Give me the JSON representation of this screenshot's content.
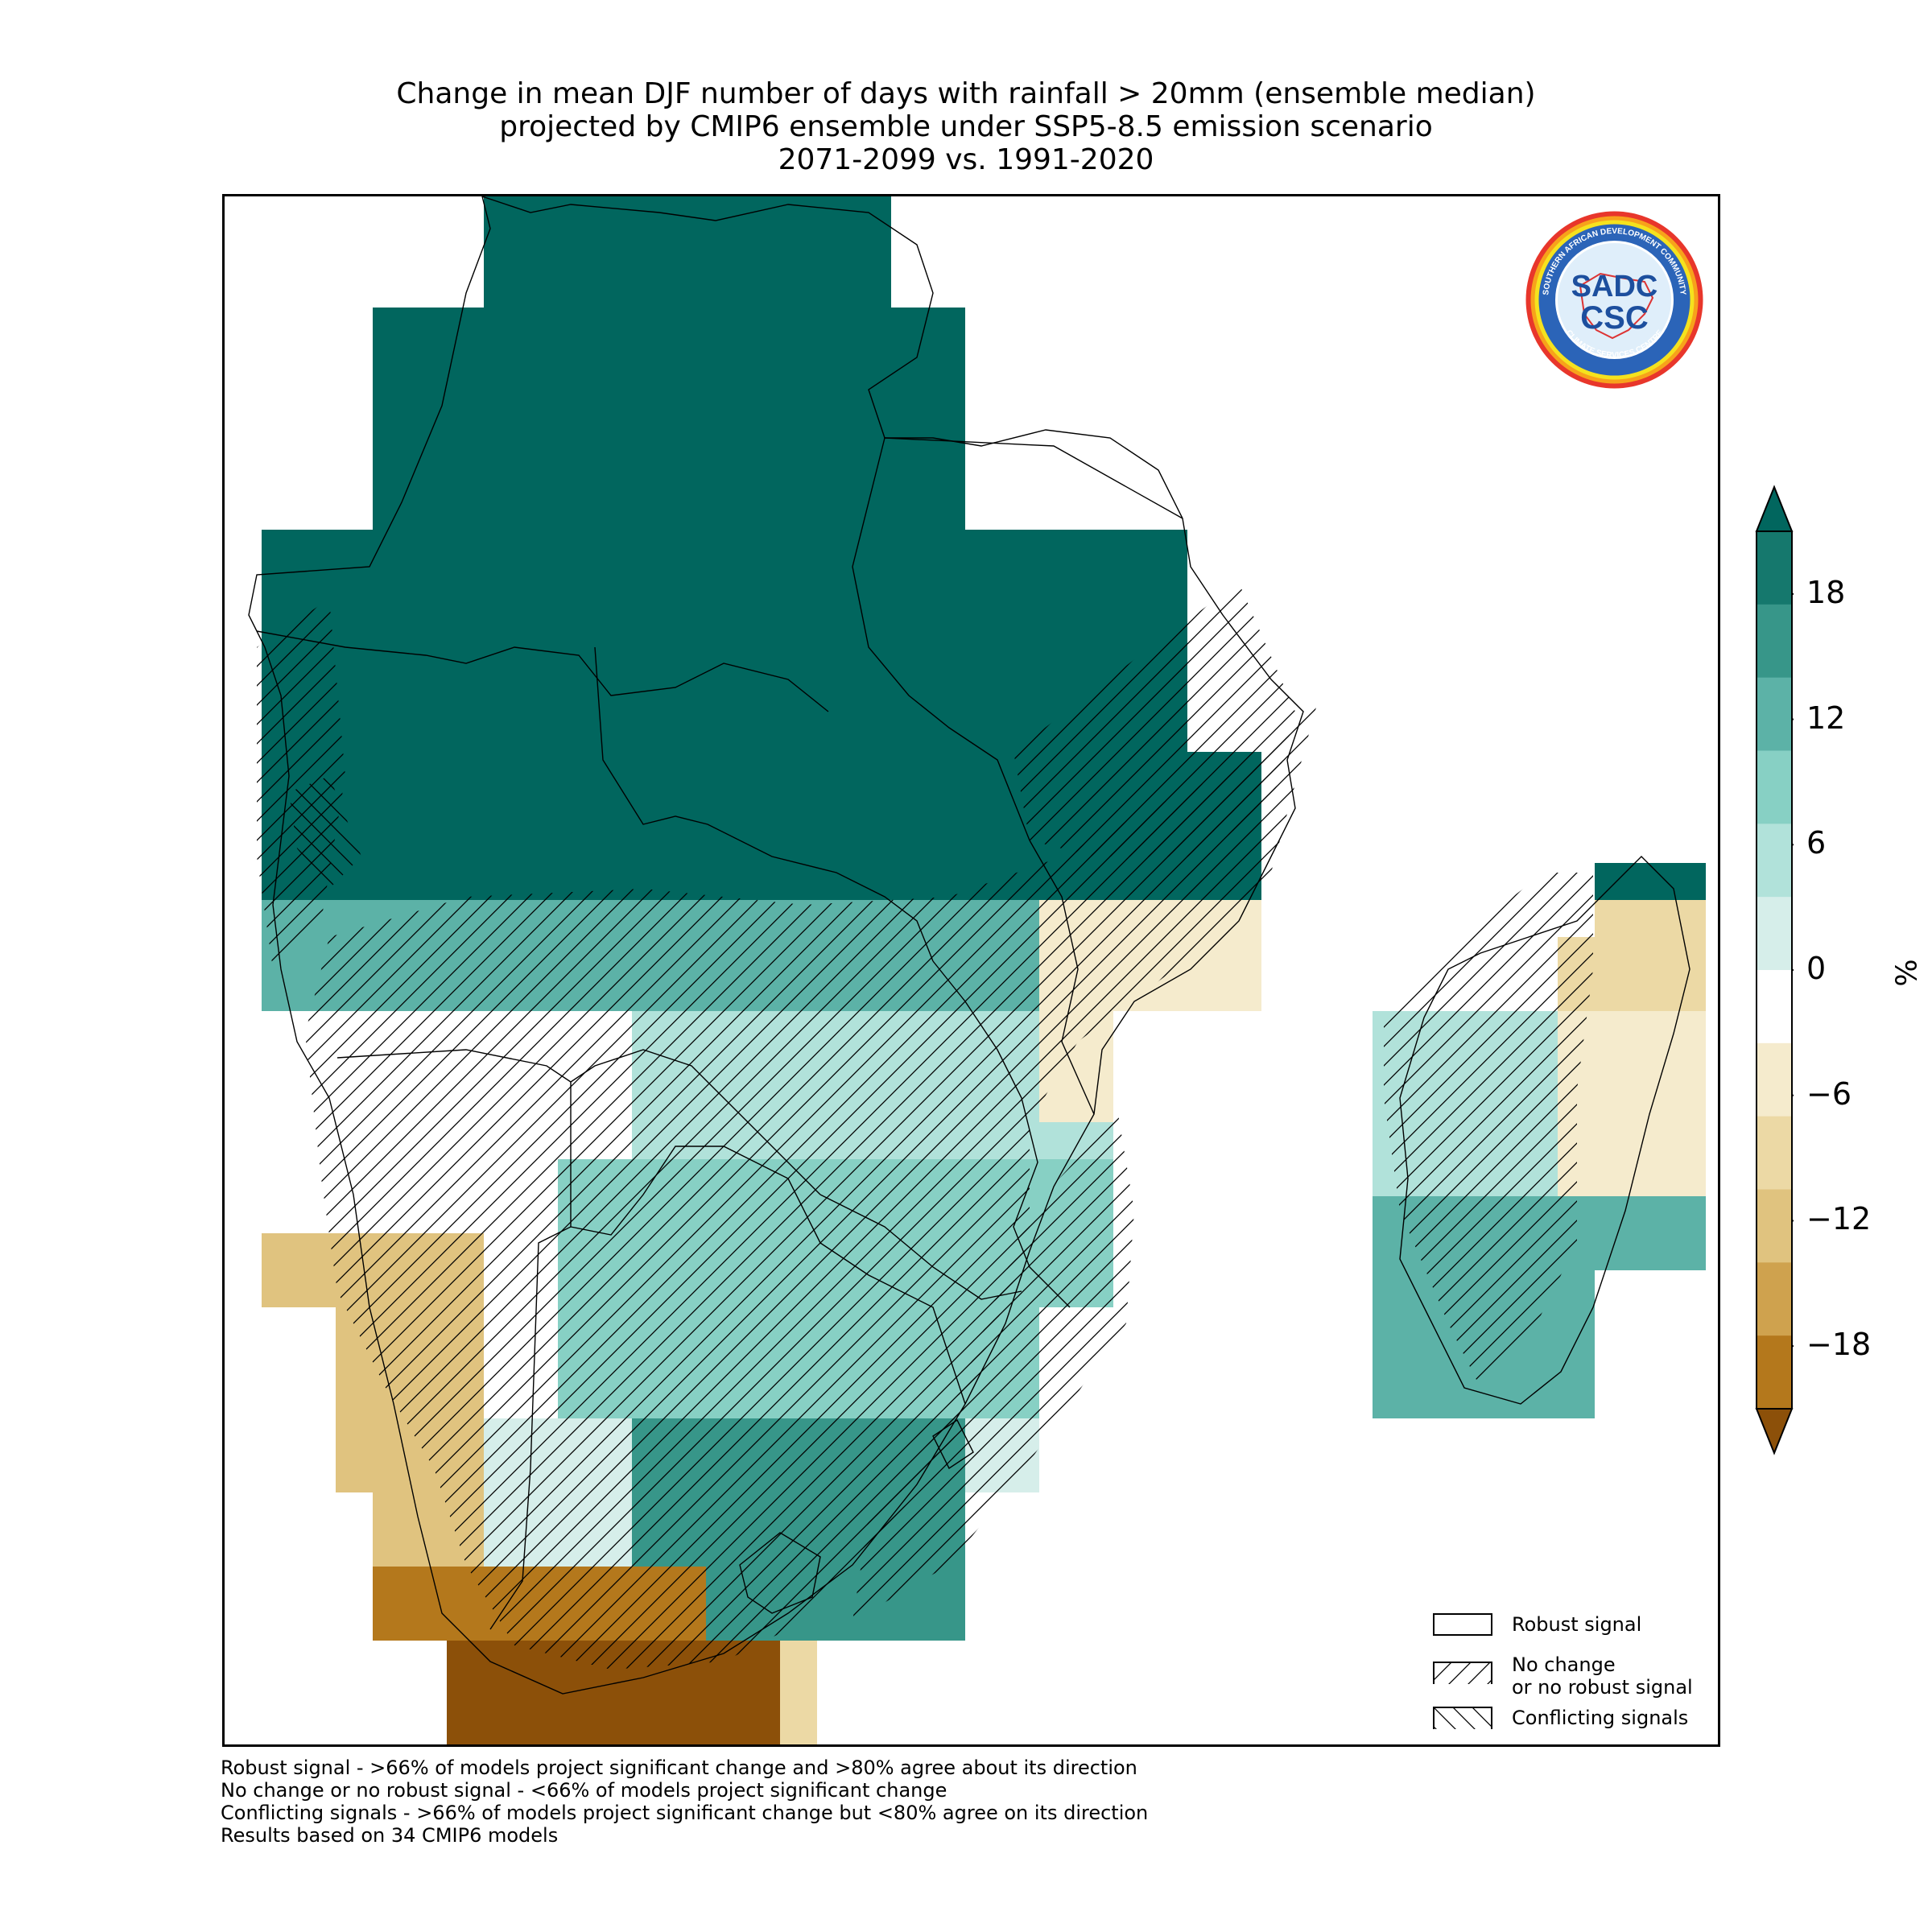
{
  "title_lines": [
    "Change in mean DJF number of days with rainfall > 20mm (ensemble median)",
    "projected by CMIP6 ensemble under SSP5-8.5 emission scenario",
    "2071-2099 vs. 1991-2020"
  ],
  "logo": {
    "text_main": "SADC",
    "text_sub": "CSC",
    "ring_top": "SOUTHERN AFRICAN DEVELOPMENT COMMUNITY",
    "ring_bottom": "CLIMATE SERVICES CENTRE"
  },
  "legend": {
    "robust": "Robust signal",
    "no_change_line1": "No change",
    "no_change_line2": "or no robust signal",
    "conflicting": "Conflicting signals"
  },
  "colorbar": {
    "unit": "%",
    "ticks": [
      "18",
      "12",
      "6",
      "0",
      "−6",
      "−12",
      "−18"
    ],
    "tick_values": [
      18,
      12,
      6,
      0,
      -6,
      -12,
      -18
    ],
    "range": [
      -21,
      21
    ],
    "extend": "both",
    "colors": [
      "#8c5009",
      "#b4781c",
      "#cfa24e",
      "#e0c37f",
      "#ecd9a5",
      "#f5ebcd",
      "#ffffff",
      "#d6eeea",
      "#b1e2da",
      "#87d0c4",
      "#5cb2a7",
      "#379689",
      "#15786d",
      "#01665e"
    ]
  },
  "notes": [
    "Robust signal - >66% of models project significant change and >80% agree about its direction",
    "No change or no robust signal - <66% of models project significant change",
    "Conflicting signals - >66% of models project significant change but <80% agree on its direction",
    "Results based on 34 CMIP6 models"
  ],
  "colors": {
    "max_positive": "#01665e",
    "max_negative": "#8c5009"
  }
}
